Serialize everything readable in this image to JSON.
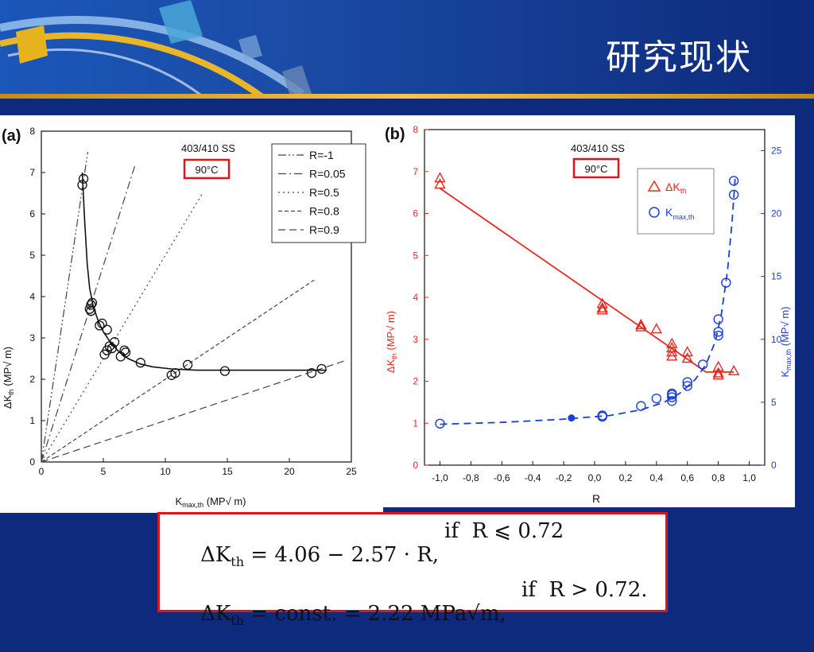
{
  "slide": {
    "title": "研究现状",
    "colors": {
      "background": "#0e2a7d",
      "highlight_box": "#e0151b"
    }
  },
  "chart_data": [
    {
      "type": "scatter",
      "panel_label": "(a)",
      "material": "403/410 SS",
      "temperature": "90°C",
      "xlabel": "K_max,th (MP√ m)",
      "ylabel": "ΔK_th (MP√ m)",
      "xlim": [
        0,
        25
      ],
      "ylim": [
        0,
        8
      ],
      "xticks": [
        0,
        5,
        10,
        15,
        20,
        25
      ],
      "yticks": [
        0,
        1,
        2,
        3,
        4,
        5,
        6,
        7,
        8
      ],
      "legend_position": "top-right",
      "reference_lines": [
        {
          "name": "R=-1",
          "style": "dash-dot-dot",
          "x_end": 3.75,
          "y_end": 7.5
        },
        {
          "name": "R=0.05",
          "style": "dash-dot",
          "x_end": 7.6,
          "y_end": 7.22
        },
        {
          "name": "R=0.5",
          "style": "dotted",
          "x_end": 13.0,
          "y_end": 6.5
        },
        {
          "name": "R=0.8",
          "style": "dashed",
          "x_end": 22.0,
          "y_end": 4.4
        },
        {
          "name": "R=0.9",
          "style": "long-dashed",
          "x_end": 24.5,
          "y_end": 2.45
        }
      ],
      "points": [
        [
          3.3,
          6.7
        ],
        [
          3.4,
          6.85
        ],
        [
          3.9,
          3.7
        ],
        [
          4.0,
          3.8
        ],
        [
          4.1,
          3.85
        ],
        [
          4.0,
          3.65
        ],
        [
          4.7,
          3.3
        ],
        [
          4.9,
          3.35
        ],
        [
          5.3,
          3.2
        ],
        [
          5.1,
          2.6
        ],
        [
          5.3,
          2.7
        ],
        [
          5.5,
          2.8
        ],
        [
          5.7,
          2.75
        ],
        [
          5.9,
          2.9
        ],
        [
          6.4,
          2.55
        ],
        [
          6.7,
          2.7
        ],
        [
          6.8,
          2.65
        ],
        [
          8.0,
          2.4
        ],
        [
          10.5,
          2.1
        ],
        [
          10.8,
          2.15
        ],
        [
          11.8,
          2.35
        ],
        [
          14.8,
          2.2
        ],
        [
          21.8,
          2.15
        ],
        [
          22.6,
          2.25
        ]
      ],
      "fit_curve": [
        [
          3.3,
          7.0
        ],
        [
          3.5,
          5.8
        ],
        [
          3.7,
          4.8
        ],
        [
          3.9,
          4.2
        ],
        [
          4.2,
          3.75
        ],
        [
          4.6,
          3.4
        ],
        [
          5.0,
          3.15
        ],
        [
          5.6,
          2.88
        ],
        [
          6.3,
          2.65
        ],
        [
          7.0,
          2.5
        ],
        [
          8.0,
          2.37
        ],
        [
          9.0,
          2.3
        ],
        [
          10.5,
          2.25
        ],
        [
          12.5,
          2.22
        ],
        [
          16.0,
          2.22
        ],
        [
          23.0,
          2.22
        ]
      ]
    },
    {
      "type": "scatter",
      "panel_label": "(b)",
      "material": "403/410 SS",
      "temperature": "90°C",
      "xlabel": "R",
      "ylabel": "ΔK_th (MP√ m)",
      "y2label": "K_max,th (MP√ m)",
      "xlim": [
        -1.1,
        1.1
      ],
      "ylim": [
        0,
        8
      ],
      "y2lim": [
        0,
        26.67
      ],
      "xticks": [
        -1.0,
        -0.8,
        -0.6,
        -0.4,
        -0.2,
        0.0,
        0.2,
        0.4,
        0.6,
        0.8,
        1.0
      ],
      "xticklabels": [
        "-1,0",
        "-0,8",
        "-0,6",
        "-0,4",
        "-0,2",
        "0,0",
        "0,2",
        "0,4",
        "0,6",
        "0,8",
        "1,0"
      ],
      "yticks": [
        0,
        1,
        2,
        3,
        4,
        5,
        6,
        7,
        8
      ],
      "y2ticks": [
        0,
        5,
        10,
        15,
        20,
        25
      ],
      "legend_position": "top-right",
      "series": [
        {
          "name": "ΔK_th",
          "marker": "triangle",
          "color": "#e8281e",
          "points": [
            [
              -1.0,
              6.85
            ],
            [
              -1.0,
              6.7
            ],
            [
              0.05,
              3.85
            ],
            [
              0.05,
              3.75
            ],
            [
              0.05,
              3.7
            ],
            [
              0.3,
              3.35
            ],
            [
              0.3,
              3.3
            ],
            [
              0.4,
              3.25
            ],
            [
              0.5,
              2.9
            ],
            [
              0.5,
              2.8
            ],
            [
              0.5,
              2.7
            ],
            [
              0.5,
              2.6
            ],
            [
              0.6,
              2.7
            ],
            [
              0.6,
              2.55
            ],
            [
              0.8,
              2.35
            ],
            [
              0.8,
              2.2
            ],
            [
              0.8,
              2.15
            ],
            [
              0.9,
              2.25
            ]
          ],
          "fit": [
            [
              -1.0,
              6.6
            ],
            [
              0.72,
              2.22
            ],
            [
              0.9,
              2.22
            ]
          ]
        },
        {
          "name": "K_max,th",
          "marker": "circle",
          "color": "#1a3fd8",
          "axis": "right",
          "points": [
            [
              -1.0,
              3.3
            ],
            [
              0.05,
              3.85
            ],
            [
              0.05,
              3.95
            ],
            [
              0.3,
              4.7
            ],
            [
              0.4,
              5.3
            ],
            [
              0.5,
              5.1
            ],
            [
              0.5,
              5.4
            ],
            [
              0.5,
              5.6
            ],
            [
              0.5,
              5.7
            ],
            [
              0.6,
              6.3
            ],
            [
              0.6,
              6.6
            ],
            [
              0.7,
              8.0
            ],
            [
              0.8,
              10.3
            ],
            [
              0.8,
              10.6
            ],
            [
              0.8,
              11.6
            ],
            [
              0.85,
              14.5
            ],
            [
              0.9,
              21.5
            ],
            [
              0.9,
              22.6
            ]
          ],
          "filled_points": [
            [
              -0.15,
              3.75
            ]
          ],
          "fit": [
            [
              -1.0,
              3.25
            ],
            [
              -0.6,
              3.4
            ],
            [
              -0.2,
              3.65
            ],
            [
              0.1,
              3.95
            ],
            [
              0.3,
              4.4
            ],
            [
              0.45,
              5.0
            ],
            [
              0.55,
              5.7
            ],
            [
              0.65,
              6.8
            ],
            [
              0.72,
              8.0
            ],
            [
              0.78,
              9.8
            ],
            [
              0.82,
              12.0
            ],
            [
              0.86,
              15.5
            ],
            [
              0.89,
              19.5
            ],
            [
              0.91,
              23.0
            ]
          ]
        }
      ]
    }
  ],
  "formula": {
    "line1_lhs": "ΔK",
    "line1_sub": "th",
    "line1_rhs": " = 4.06 − 2.57 · R,",
    "line1_cond": "if  R ⩽ 0.72",
    "line2_lhs": "ΔK",
    "line2_sub": "th",
    "line2_rhs": " = const. = 2.22 MPa√m,",
    "line2_cond": "if  R > 0.72."
  }
}
